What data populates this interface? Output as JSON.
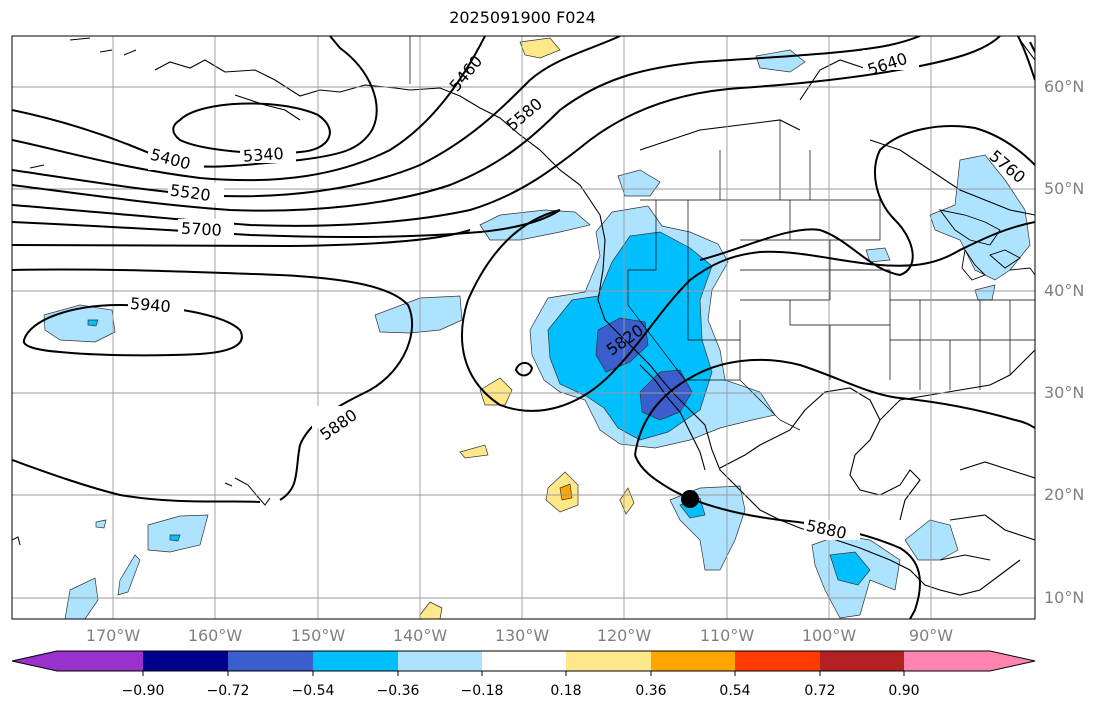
{
  "title": "2025091900 F024",
  "lat_labels": [
    "60°N",
    "50°N",
    "40°N",
    "30°N",
    "20°N",
    "10°N"
  ],
  "lon_labels": [
    "170°W",
    "160°W",
    "150°W",
    "140°W",
    "130°W",
    "120°W",
    "110°W",
    "100°W",
    "90°W"
  ],
  "contour_labels": [
    "5340",
    "5400",
    "5460",
    "5520",
    "5580",
    "5640",
    "5700",
    "5760",
    "5820",
    "5880",
    "5880",
    "5940"
  ],
  "colorbar": {
    "ticks": [
      "−0.90",
      "−0.72",
      "−0.54",
      "−0.36",
      "−0.18",
      "0.18",
      "0.36",
      "0.54",
      "0.72",
      "0.90"
    ],
    "colors": [
      "#9932cc",
      "#00008b",
      "#3a5fcd",
      "#00bfff",
      "#aee3ff",
      "#ffffff",
      "#ffe88a",
      "#ffa500",
      "#ff3a00",
      "#b22222",
      "#ff85b0"
    ]
  },
  "marker": "storm-center"
}
